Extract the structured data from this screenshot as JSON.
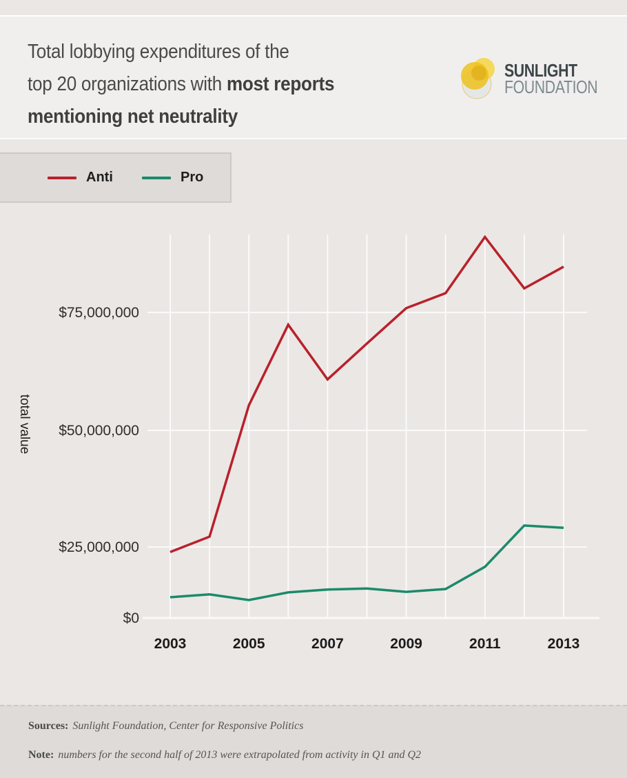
{
  "header": {
    "title_line1": "Total lobbying expenditures of the",
    "title_line2_regular": "top 20 organizations with ",
    "title_line2_bold": "most reports",
    "title_line3_bold": "mentioning net neutrality",
    "logo": {
      "icon": "sunlight-overlapping-circles-icon",
      "line1": "SUNLIGHT",
      "line2": "FOUNDATION",
      "colors": {
        "primary": "#f2c81e",
        "secondary": "#e2b419",
        "pale": "#e4e6e6",
        "text_dark": "#3d4649",
        "text_light": "#7d8a8e"
      }
    }
  },
  "legend": {
    "items": [
      {
        "label": "Anti",
        "color": "#b8212c"
      },
      {
        "label": "Pro",
        "color": "#1b8a6b"
      }
    ]
  },
  "chart_data": {
    "type": "line",
    "title": "Total lobbying expenditures of the top 20 organizations with most reports mentioning net neutrality",
    "xlabel": "",
    "ylabel": "total value",
    "x": [
      2003,
      2004,
      2005,
      2006,
      2007,
      2008,
      2009,
      2010,
      2011,
      2012,
      2013
    ],
    "x_tick_labels": [
      "2003",
      "2005",
      "2007",
      "2009",
      "2011",
      "2013"
    ],
    "y_ticks": [
      0,
      25000000,
      50000000,
      75000000
    ],
    "y_tick_labels": [
      "$0",
      "$25,000,000",
      "$50,000,000",
      "$75,000,000"
    ],
    "ylim": [
      0,
      92000000
    ],
    "grid": true,
    "legend_position": "top-left",
    "series": [
      {
        "name": "Anti",
        "color": "#b8212c",
        "values": [
          23200000,
          27200000,
          55300000,
          72400000,
          60800000,
          68400000,
          75900000,
          79100000,
          91000000,
          80100000,
          84700000
        ]
      },
      {
        "name": "Pro",
        "color": "#1b8a6b",
        "values": [
          7300000,
          8300000,
          6300000,
          9000000,
          10000000,
          10400000,
          9200000,
          10200000,
          18000000,
          29600000,
          29100000
        ]
      }
    ]
  },
  "footer": {
    "sources_label": "Sources:",
    "sources_text": "Sunlight Foundation, Center for Responsive Politics",
    "note_label": "Note:",
    "note_text": "numbers for the second half of 2013 were extrapolated from activity in Q1 and Q2"
  }
}
